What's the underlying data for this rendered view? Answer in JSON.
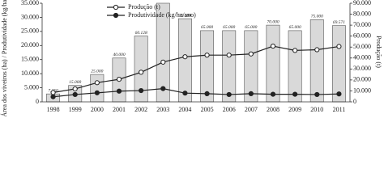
{
  "chart_data": {
    "type": "bar-line",
    "ylabel": "Área dos viveiros (ha) / Produtividade (kg/ha/ano)",
    "y2label": "Produção (t)",
    "categories": [
      "1998",
      "1999",
      "2000",
      "2001",
      "2002",
      "2003",
      "2004",
      "2005",
      "2006",
      "2007",
      "2008",
      "2009",
      "2010",
      "2011"
    ],
    "ylim": [
      0,
      35000
    ],
    "yticks": [
      {
        "value": 0,
        "label": "0"
      },
      {
        "value": 5000,
        "label": "5.000"
      },
      {
        "value": 10000,
        "label": "10.000"
      },
      {
        "value": 15000,
        "label": "15.000"
      },
      {
        "value": 20000,
        "label": "20.000"
      },
      {
        "value": 25000,
        "label": "25.000"
      },
      {
        "value": 30000,
        "label": "30.000"
      },
      {
        "value": 35000,
        "label": "35.000"
      }
    ],
    "y2lim": [
      0,
      90000
    ],
    "y2ticks": [
      {
        "value": 0,
        "label": "0"
      },
      {
        "value": 10000,
        "label": "10.000"
      },
      {
        "value": 20000,
        "label": "20.000"
      },
      {
        "value": 30000,
        "label": "30.000"
      },
      {
        "value": 40000,
        "label": "40.000"
      },
      {
        "value": 50000,
        "label": "50.000"
      },
      {
        "value": 60000,
        "label": "60.000"
      },
      {
        "value": 70000,
        "label": "70.000"
      },
      {
        "value": 80000,
        "label": "80.000"
      },
      {
        "value": 90000,
        "label": "90.000"
      }
    ],
    "legend": "top-left",
    "bars": {
      "color": "#d9d9d9",
      "axis": "y2",
      "values": [
        7250,
        15000,
        25000,
        40000,
        60128,
        90000,
        75904,
        65000,
        65000,
        65000,
        70000,
        65000,
        75000,
        69571
      ],
      "value_labels": [
        "7.250",
        "15.000",
        "25.000",
        "40.000",
        "60.128",
        null,
        "75.904",
        "65.000",
        "65.000",
        "65.000",
        "70.000",
        "65.000",
        "75.000",
        "69.571"
      ]
    },
    "series": [
      {
        "name": "Produção (t)",
        "color": "#222222",
        "marker": "open",
        "values": [
          3300,
          4600,
          6800,
          8000,
          10500,
          14100,
          16000,
          16590,
          16590,
          17000,
          19775,
          18250,
          18500,
          19642
        ]
      },
      {
        "name": "Produtividade (kg/ha/ano)",
        "color": "#222222",
        "marker": "filled",
        "values": [
          1800,
          2600,
          3200,
          3800,
          4000,
          4700,
          3100,
          2900,
          2600,
          2900,
          2700,
          2700,
          2600,
          2800
        ]
      }
    ]
  }
}
